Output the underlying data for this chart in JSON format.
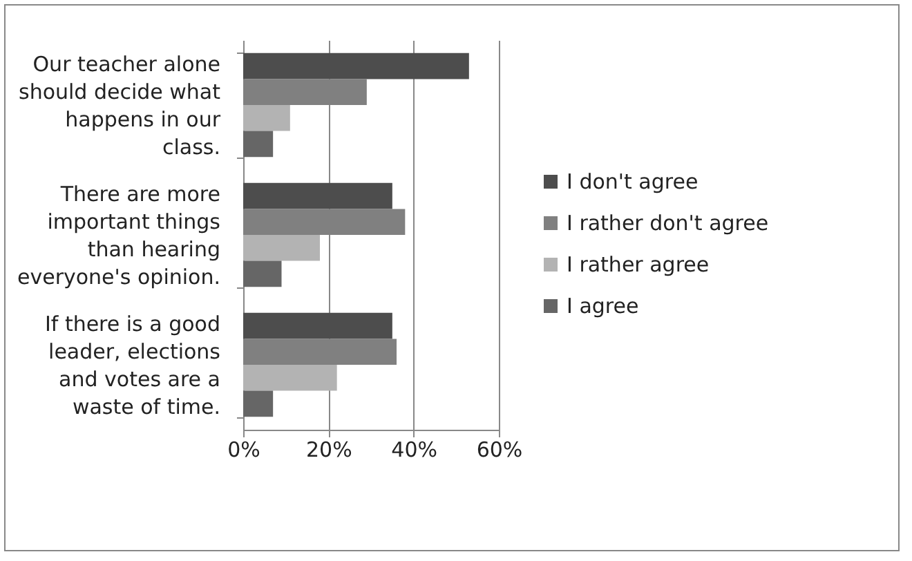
{
  "chart_data": {
    "type": "bar",
    "orientation": "horizontal",
    "categories": [
      "Our teacher alone should decide what happens in our class.",
      "There are more important things than hearing everyone's opinion.",
      "If there is a good leader, elections and votes are a waste of time."
    ],
    "series": [
      {
        "name": "I don't agree",
        "color": "#4d4d4d",
        "values": [
          53,
          35,
          35
        ]
      },
      {
        "name": "I rather don't agree",
        "color": "#808080",
        "values": [
          29,
          38,
          36
        ]
      },
      {
        "name": "I rather agree",
        "color": "#b3b3b3",
        "values": [
          11,
          18,
          22
        ]
      },
      {
        "name": "I agree",
        "color": "#666666",
        "values": [
          7,
          9,
          7
        ]
      }
    ],
    "xlim": [
      0,
      60
    ],
    "xticks": [
      {
        "value": 0,
        "label": "0%"
      },
      {
        "value": 20,
        "label": "20%"
      },
      {
        "value": 40,
        "label": "40%"
      },
      {
        "value": 60,
        "label": "60%"
      }
    ],
    "grid": "x",
    "legend": "right"
  }
}
